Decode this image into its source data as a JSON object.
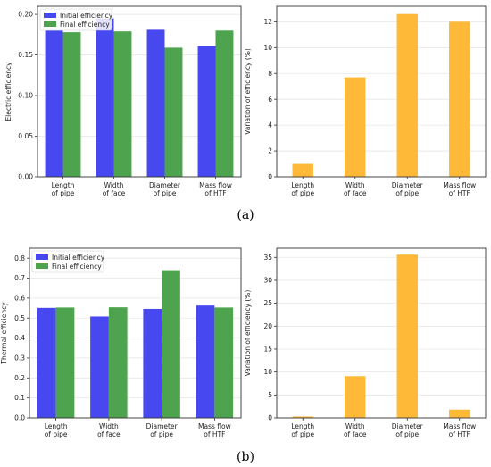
{
  "chart_data": [
    {
      "type": "bar",
      "panel": "a-left",
      "categories": [
        "Length\nof pipe",
        "Width\nof face",
        "Diameter\nof pipe",
        "Mass flow\nof HTF"
      ],
      "series": [
        {
          "name": "Initial efficiency",
          "color": "#4848f0",
          "values": [
            0.18,
            0.195,
            0.181,
            0.161
          ]
        },
        {
          "name": "Final efficiency",
          "color": "#4ea34e",
          "values": [
            0.178,
            0.179,
            0.159,
            0.18
          ]
        }
      ],
      "xlabel": "",
      "ylabel": "Electric efficiency",
      "ylim": [
        0,
        0.21
      ],
      "yticks": [
        "0.00",
        "0.05",
        "0.10",
        "0.15",
        "0.20"
      ],
      "ytick_values": [
        0,
        0.05,
        0.1,
        0.15,
        0.2
      ],
      "grid": true,
      "legend": "top-left"
    },
    {
      "type": "bar",
      "panel": "a-right",
      "categories": [
        "Length\nof pipe",
        "Width\nof face",
        "Diameter\nof pipe",
        "Mass flow\nof HTF"
      ],
      "series": [
        {
          "color": "#ffb938",
          "values": [
            1.0,
            7.7,
            12.6,
            12.0
          ]
        }
      ],
      "xlabel": "",
      "ylabel": "Variation of efficiency (%)",
      "ylim": [
        0,
        13.2
      ],
      "yticks": [
        "0",
        "2",
        "4",
        "6",
        "8",
        "10",
        "12"
      ],
      "ytick_values": [
        0,
        2,
        4,
        6,
        8,
        10,
        12
      ],
      "grid": true
    },
    {
      "type": "bar",
      "panel": "b-left",
      "categories": [
        "Length\nof pipe",
        "Width\nof face",
        "Diameter\nof pipe",
        "Mass flow\nof HTF"
      ],
      "series": [
        {
          "name": "Initial efficiency",
          "color": "#4848f0",
          "values": [
            0.551,
            0.508,
            0.546,
            0.563
          ]
        },
        {
          "name": "Final efficiency",
          "color": "#4ea34e",
          "values": [
            0.553,
            0.554,
            0.74,
            0.553
          ]
        }
      ],
      "xlabel": "",
      "ylabel": "Thermal efficiency",
      "ylim": [
        0,
        0.85
      ],
      "yticks": [
        "0.0",
        "0.1",
        "0.2",
        "0.3",
        "0.4",
        "0.5",
        "0.6",
        "0.7",
        "0.8"
      ],
      "ytick_values": [
        0,
        0.1,
        0.2,
        0.3,
        0.4,
        0.5,
        0.6,
        0.7,
        0.8
      ],
      "grid": true,
      "legend": "top-left"
    },
    {
      "type": "bar",
      "panel": "b-right",
      "categories": [
        "Length\nof pipe",
        "Width\nof face",
        "Diameter\nof pipe",
        "Mass flow\nof HTF"
      ],
      "series": [
        {
          "color": "#ffb938",
          "values": [
            0.3,
            9.1,
            35.6,
            1.8
          ]
        }
      ],
      "xlabel": "",
      "ylabel": "Variation of efficiency (%)",
      "ylim": [
        0,
        37
      ],
      "yticks": [
        "0",
        "5",
        "10",
        "15",
        "20",
        "25",
        "30",
        "35"
      ],
      "ytick_values": [
        0,
        5,
        10,
        15,
        20,
        25,
        30,
        35
      ],
      "grid": true
    }
  ],
  "captions": {
    "a": "(a)",
    "b": "(b)"
  }
}
